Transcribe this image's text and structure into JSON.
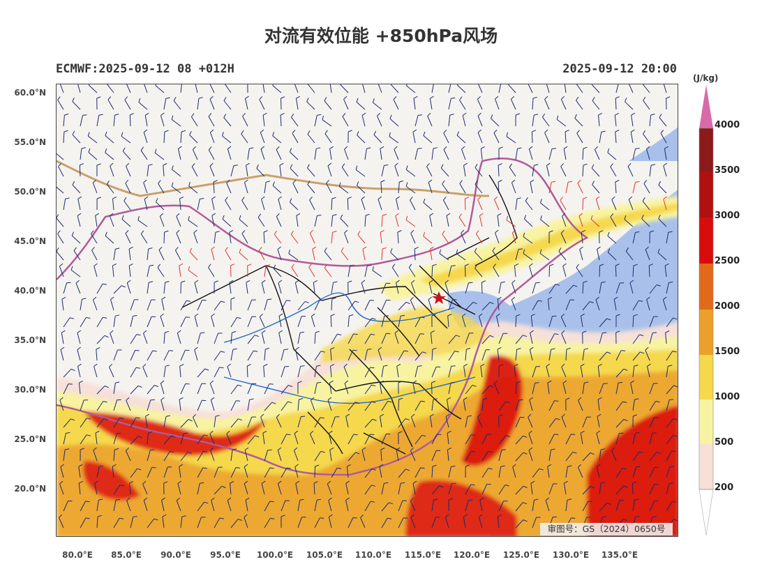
{
  "title": "对流有效位能 +850hPa风场",
  "subtitle_left": "ECMWF:2025-09-12 08 +012H",
  "subtitle_right": "2025-09-12 20:00",
  "lat_labels": [
    "60.0°N",
    "55.0°N",
    "50.0°N",
    "45.0°N",
    "40.0°N",
    "35.0°N",
    "30.0°N",
    "25.0°N",
    "20.0°N"
  ],
  "lon_labels": [
    "80.0°E",
    "85.0°E",
    "90.0°E",
    "95.0°E",
    "100.0°E",
    "105.0°E",
    "110.0°E",
    "115.0°E",
    "120.0°E",
    "125.0°E",
    "130.0°E",
    "135.0°E"
  ],
  "colorbar": {
    "unit": "(J/kg)",
    "labels": [
      "4000",
      "3500",
      "3000",
      "2500",
      "2000",
      "1500",
      "1000",
      "500",
      "200"
    ],
    "colors": [
      "#d96aa8",
      "#8b1a1a",
      "#b01010",
      "#d90c0c",
      "#e06a1a",
      "#eba02b",
      "#f5d84b",
      "#f8f3a0",
      "#f6e0d8",
      "#ffffff"
    ]
  },
  "approval_number": "审图号：GS（2024）0650号",
  "colors": {
    "land": "#f5f3ef",
    "ocean": "#a9c1ea",
    "province_border": "#111111",
    "national_border": "#b05a9a",
    "mongolia_border": "#c9a06a",
    "rivers": "#2266cc",
    "barb_calm": "#1a2a6e",
    "barb_strong": "#e03030"
  }
}
